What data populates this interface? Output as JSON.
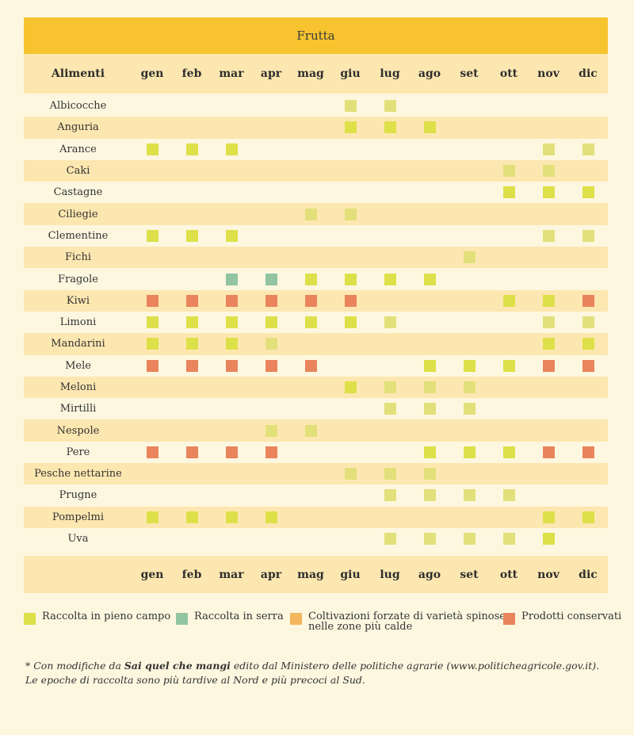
{
  "title": "Frutta",
  "header": {
    "name": "Alimenti"
  },
  "months": [
    "gen",
    "feb",
    "mar",
    "apr",
    "mag",
    "giu",
    "lug",
    "ago",
    "set",
    "ott",
    "nov",
    "dic"
  ],
  "colors": {
    "C": "#dde048",
    "S": "#92c4a1",
    "F": "#f2b65c",
    "P": "#e9845d",
    "L": "#e2e07a"
  },
  "rows": [
    {
      "name": "Albicocche",
      "cells": [
        "",
        "",
        "",
        "",
        "",
        "L",
        "L",
        "",
        "",
        "",
        "",
        ""
      ]
    },
    {
      "name": "Anguria",
      "cells": [
        "",
        "",
        "",
        "",
        "",
        "C",
        "C",
        "C",
        "",
        "",
        "",
        ""
      ]
    },
    {
      "name": "Arance",
      "cells": [
        "C",
        "C",
        "C",
        "",
        "",
        "",
        "",
        "",
        "",
        "",
        "L",
        "L"
      ]
    },
    {
      "name": "Caki",
      "cells": [
        "",
        "",
        "",
        "",
        "",
        "",
        "",
        "",
        "",
        "L",
        "L",
        ""
      ]
    },
    {
      "name": "Castagne",
      "cells": [
        "",
        "",
        "",
        "",
        "",
        "",
        "",
        "",
        "",
        "C",
        "C",
        "C"
      ]
    },
    {
      "name": "Ciliegie",
      "cells": [
        "",
        "",
        "",
        "",
        "L",
        "L",
        "",
        "",
        "",
        "",
        "",
        ""
      ]
    },
    {
      "name": "Clementine",
      "cells": [
        "C",
        "C",
        "C",
        "",
        "",
        "",
        "",
        "",
        "",
        "",
        "L",
        "L"
      ]
    },
    {
      "name": "Fichi",
      "cells": [
        "",
        "",
        "",
        "",
        "",
        "",
        "",
        "",
        "L",
        "",
        "",
        ""
      ]
    },
    {
      "name": "Fragole",
      "cells": [
        "",
        "",
        "S",
        "S",
        "C",
        "C",
        "C",
        "C",
        "",
        "",
        "",
        ""
      ]
    },
    {
      "name": "Kiwi",
      "cells": [
        "P",
        "P",
        "P",
        "P",
        "P",
        "P",
        "",
        "",
        "",
        "C",
        "C",
        "P"
      ]
    },
    {
      "name": "Limoni",
      "cells": [
        "C",
        "C",
        "C",
        "C",
        "C",
        "C",
        "L",
        "",
        "",
        "",
        "L",
        "L"
      ]
    },
    {
      "name": "Mandarini",
      "cells": [
        "C",
        "C",
        "C",
        "L",
        "",
        "",
        "",
        "",
        "",
        "",
        "C",
        "C"
      ]
    },
    {
      "name": "Mele",
      "cells": [
        "P",
        "P",
        "P",
        "P",
        "P",
        "",
        "",
        "C",
        "C",
        "C",
        "P",
        "P"
      ]
    },
    {
      "name": "Meloni",
      "cells": [
        "",
        "",
        "",
        "",
        "",
        "C",
        "L",
        "L",
        "L",
        "",
        "",
        ""
      ]
    },
    {
      "name": "Mirtilli",
      "cells": [
        "",
        "",
        "",
        "",
        "",
        "",
        "L",
        "L",
        "L",
        "",
        "",
        ""
      ]
    },
    {
      "name": "Nespole",
      "cells": [
        "",
        "",
        "",
        "L",
        "L",
        "",
        "",
        "",
        "",
        "",
        "",
        ""
      ]
    },
    {
      "name": "Pere",
      "cells": [
        "P",
        "P",
        "P",
        "P",
        "",
        "",
        "",
        "C",
        "C",
        "C",
        "P",
        "P"
      ]
    },
    {
      "name": "Pesche nettarine",
      "cells": [
        "",
        "",
        "",
        "",
        "",
        "L",
        "L",
        "L",
        "",
        "",
        "",
        ""
      ]
    },
    {
      "name": "Prugne",
      "cells": [
        "",
        "",
        "",
        "",
        "",
        "",
        "L",
        "L",
        "L",
        "L",
        "",
        ""
      ]
    },
    {
      "name": "Pompelmi",
      "cells": [
        "C",
        "C",
        "C",
        "C",
        "",
        "",
        "",
        "",
        "",
        "",
        "C",
        "C"
      ]
    },
    {
      "name": "Uva",
      "cells": [
        "",
        "",
        "",
        "",
        "",
        "",
        "L",
        "L",
        "L",
        "L",
        "C",
        ""
      ]
    }
  ],
  "legend": [
    {
      "key": "C",
      "label": "Raccolta in pieno campo"
    },
    {
      "key": "S",
      "label": "Raccolta in serra"
    },
    {
      "key": "F",
      "label": "Coltivazioni forzate di varietà spinose",
      "label2": "nelle  zone più calde"
    },
    {
      "key": "P",
      "label": "Prodotti conservati"
    }
  ],
  "note": {
    "prefix": "* Con modifiche da ",
    "bold": "Sai quel che mangi",
    "suffix": " edito dal Ministero delle politiche agrarie (www.politicheagricole.gov.it).",
    "line2": "Le epoche di raccolta sono più tardive al Nord e più precoci al Sud."
  }
}
